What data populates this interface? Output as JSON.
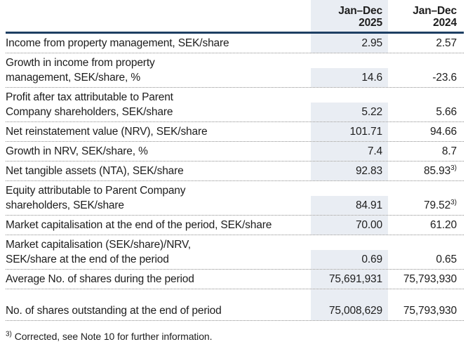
{
  "colors": {
    "rule": "#1e3f63",
    "column_highlight": "#e9edf3",
    "dotted_divider": "#8c8c8c",
    "text": "#1d1d1d"
  },
  "table": {
    "columns": [
      {
        "label": "Jan–Dec\n2025"
      },
      {
        "label": "Jan–Dec\n2024"
      }
    ],
    "rows": [
      {
        "label": "Income from property management, SEK/share",
        "v2025": "2.95",
        "v2024": "2.57"
      },
      {
        "label": "Growth in income from property\nmanagement, SEK/share, %",
        "v2025": "14.6",
        "v2024": "-23.6"
      },
      {
        "label": "Profit after tax attributable to Parent\nCompany shareholders, SEK/share",
        "v2025": "5.22",
        "v2024": "5.66"
      },
      {
        "label": "Net reinstatement value (NRV), SEK/share",
        "v2025": "101.71",
        "v2024": "94.66"
      },
      {
        "label": "Growth in NRV, SEK/share, %",
        "v2025": "7.4",
        "v2024": "8.7"
      },
      {
        "label": "Net tangible assets (NTA), SEK/share",
        "v2025": "92.83",
        "v2024": "85.93",
        "v2024_sup": "3)"
      },
      {
        "label": "Equity attributable to Parent Company\nshareholders, SEK/share",
        "v2025": "84.91",
        "v2024": "79.52",
        "v2024_sup": "3)"
      },
      {
        "label": "Market capitalisation at the end of the period, SEK/share",
        "v2025": "70.00",
        "v2024": "61.20"
      },
      {
        "label": "Market capitalisation (SEK/share)/NRV,\nSEK/share at the end of the period",
        "v2025": "0.69",
        "v2024": "0.65"
      },
      {
        "label": "Average No. of shares during the period",
        "v2025": "75,691,931",
        "v2024": "75,793,930"
      },
      {
        "spacer": true
      },
      {
        "label": "No. of shares outstanding at the end of period",
        "v2025": "75,008,629",
        "v2024": "75,793,930"
      }
    ]
  },
  "footnote": {
    "marker": "3)",
    "text": " Corrected, see Note 10 for further information."
  }
}
